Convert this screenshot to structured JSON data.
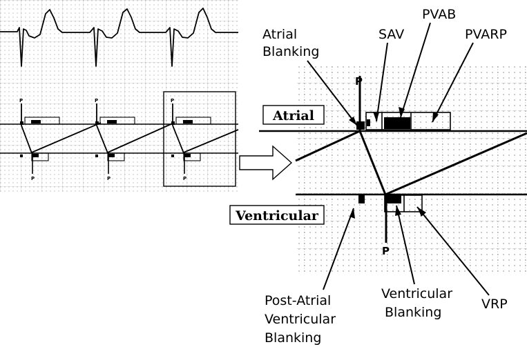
{
  "labels": {
    "atrial_blanking_line1": "Atrial",
    "atrial_blanking_line2": "Blanking",
    "sav": "SAV",
    "pvab": "PVAB",
    "pvarp": "PVARP",
    "atrial_channel": "Atrial",
    "ventricular_channel": "Ventricular",
    "post_atrial_line1": "Post-Atrial",
    "post_atrial_line2": "Ventricular",
    "post_atrial_line3": "Blanking",
    "ventricular_blanking_line1": "Ventricular",
    "ventricular_blanking_line2": "Blanking",
    "vrp": "VRP"
  },
  "pace_marker": "P",
  "colors": {
    "grid_dot": "#9a9a9a",
    "grid_line": "#c8c8c8",
    "ink": "#000000"
  }
}
